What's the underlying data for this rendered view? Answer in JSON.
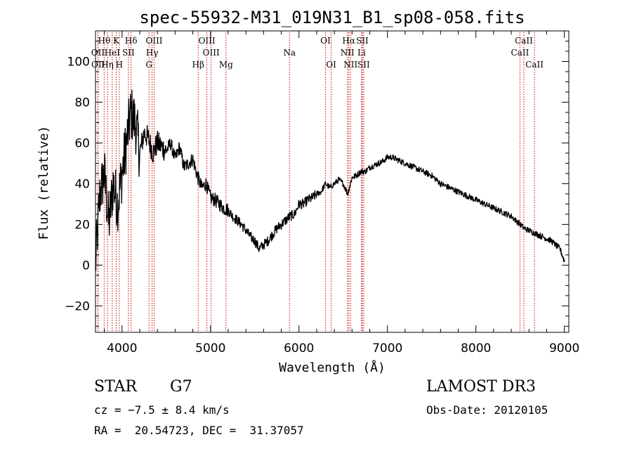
{
  "chart_data": {
    "type": "line",
    "title": "spec-55932-M31_019N31_B1_sp08-058.fits",
    "xlabel": "Wavelength (Å)",
    "ylabel": "Flux (relative)",
    "xlim": [
      3700,
      9050
    ],
    "ylim": [
      -33,
      115
    ],
    "x_ticks": [
      4000,
      5000,
      6000,
      7000,
      8000,
      9000
    ],
    "y_ticks": [
      -20,
      0,
      20,
      40,
      60,
      80,
      100
    ],
    "x_tick_labels": [
      "4000",
      "5000",
      "6000",
      "7000",
      "8000",
      "9000"
    ],
    "y_tick_labels": [
      "−20",
      "0",
      "20",
      "40",
      "60",
      "80",
      "100"
    ],
    "line_color": "#000000",
    "marker_color": "#cc0000",
    "series": [
      {
        "name": "flux",
        "x": [
          3700,
          3750,
          3800,
          3850,
          3900,
          3950,
          4000,
          4050,
          4100,
          4150,
          4200,
          4250,
          4300,
          4350,
          4400,
          4450,
          4500,
          4550,
          4600,
          4650,
          4700,
          4750,
          4800,
          4850,
          4900,
          4950,
          5000,
          5050,
          5100,
          5150,
          5200,
          5250,
          5300,
          5350,
          5400,
          5450,
          5500,
          5550,
          5600,
          5650,
          5700,
          5750,
          5800,
          5850,
          5900,
          5950,
          6000,
          6050,
          6100,
          6150,
          6200,
          6250,
          6300,
          6350,
          6400,
          6450,
          6500,
          6550,
          6600,
          6650,
          6700,
          6750,
          6800,
          6850,
          6900,
          6950,
          7000,
          7050,
          7100,
          7150,
          7200,
          7250,
          7300,
          7350,
          7400,
          7450,
          7500,
          7550,
          7600,
          7650,
          7700,
          7750,
          7800,
          7850,
          7900,
          7950,
          8000,
          8050,
          8100,
          8150,
          8200,
          8250,
          8300,
          8350,
          8400,
          8450,
          8500,
          8550,
          8600,
          8650,
          8700,
          8750,
          8800,
          8850,
          8900,
          8950,
          9000
        ],
        "y": [
          0,
          35,
          45,
          20,
          40,
          30,
          45,
          60,
          75,
          70,
          55,
          65,
          62,
          55,
          60,
          58,
          56,
          60,
          52,
          58,
          48,
          50,
          52,
          44,
          38,
          40,
          33,
          32,
          30,
          28,
          27,
          24,
          22,
          20,
          17,
          14,
          12,
          8,
          10,
          12,
          15,
          18,
          20,
          22,
          24,
          25,
          30,
          30,
          32,
          33,
          35,
          36,
          40,
          38,
          40,
          42,
          40,
          35,
          43,
          44,
          46,
          46,
          48,
          49,
          50,
          51,
          53,
          53,
          52,
          51,
          50,
          49,
          48,
          47,
          46,
          45,
          44,
          42,
          40,
          39,
          38,
          37,
          36,
          35,
          34,
          33,
          32,
          31,
          30,
          29,
          28,
          27,
          26,
          25,
          24,
          22,
          20,
          18,
          17,
          16,
          15,
          14,
          13,
          12,
          10,
          8,
          2
        ]
      }
    ],
    "line_markers": [
      {
        "label": "Hθ",
        "wavelength": 3798
      },
      {
        "label": "K",
        "wavelength": 3934
      },
      {
        "label": "Hδ",
        "wavelength": 4102
      },
      {
        "label": "OIII",
        "wavelength": 4363
      },
      {
        "label": "OIII",
        "wavelength": 4959
      },
      {
        "label": "OI",
        "wavelength": 6300
      },
      {
        "label": "Hα",
        "wavelength": 6563
      },
      {
        "label": "SII",
        "wavelength": 6716
      },
      {
        "label": "CaII",
        "wavelength": 8542
      },
      {
        "label": "OII",
        "wavelength": 3727
      },
      {
        "label": "HeI",
        "wavelength": 3889
      },
      {
        "label": "SII",
        "wavelength": 4072
      },
      {
        "label": "Hγ",
        "wavelength": 4340
      },
      {
        "label": "OIII",
        "wavelength": 5007
      },
      {
        "label": "Na",
        "wavelength": 5893
      },
      {
        "label": "NII",
        "wavelength": 6548
      },
      {
        "label": "Li",
        "wavelength": 6708
      },
      {
        "label": "CaII",
        "wavelength": 8498
      },
      {
        "label": "OII",
        "wavelength": 3729
      },
      {
        "label": "Hη",
        "wavelength": 3835
      },
      {
        "label": "H",
        "wavelength": 3969
      },
      {
        "label": "G",
        "wavelength": 4305
      },
      {
        "label": "Hβ",
        "wavelength": 4861
      },
      {
        "label": "Mg",
        "wavelength": 5175
      },
      {
        "label": "OI",
        "wavelength": 6364
      },
      {
        "label": "NII",
        "wavelength": 6583
      },
      {
        "label": "SII",
        "wavelength": 6731
      },
      {
        "label": "CaII",
        "wavelength": 8662
      }
    ]
  },
  "info": {
    "class_label": "STAR",
    "subclass": "G7",
    "survey": "LAMOST DR3",
    "cz_text": "cz = −7.5 ± 8.4 km/s",
    "obs_date_text": "Obs-Date: 20120105",
    "coords_text": "RA =  20.54723, DEC =  31.37057"
  }
}
